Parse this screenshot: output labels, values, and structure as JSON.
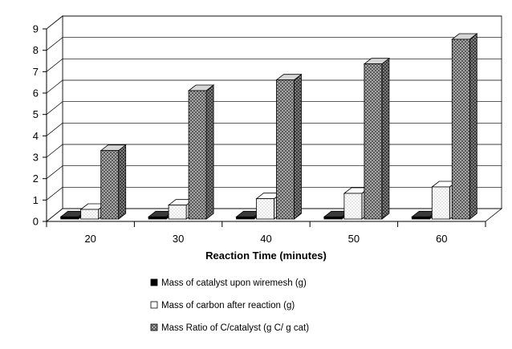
{
  "chart_data": {
    "type": "bar",
    "categories": [
      "20",
      "30",
      "40",
      "50",
      "60"
    ],
    "series": [
      {
        "name": "Mass of catalyst upon wiremesh (g)",
        "values": [
          0.1,
          0.1,
          0.1,
          0.1,
          0.1
        ],
        "color": "#000000",
        "pattern": "solid"
      },
      {
        "name": "Mass of carbon after reaction (g)",
        "values": [
          0.45,
          0.65,
          0.95,
          1.2,
          1.5
        ],
        "color": "#ffffff",
        "pattern": "dots"
      },
      {
        "name": "Mass Ratio of C/catalyst (g C/ g cat)",
        "values": [
          3.2,
          6.0,
          6.5,
          7.25,
          8.4
        ],
        "color": "#9a9a9a",
        "pattern": "crosshatch"
      }
    ],
    "title": "",
    "xlabel": "Reaction Time (minutes)",
    "ylabel": "",
    "ylim": [
      0,
      9
    ],
    "yticks": [
      "0",
      "1",
      "2",
      "3",
      "4",
      "5",
      "6",
      "7",
      "8",
      "9"
    ],
    "grid": true,
    "legend_position": "bottom",
    "style": "3d-column"
  }
}
